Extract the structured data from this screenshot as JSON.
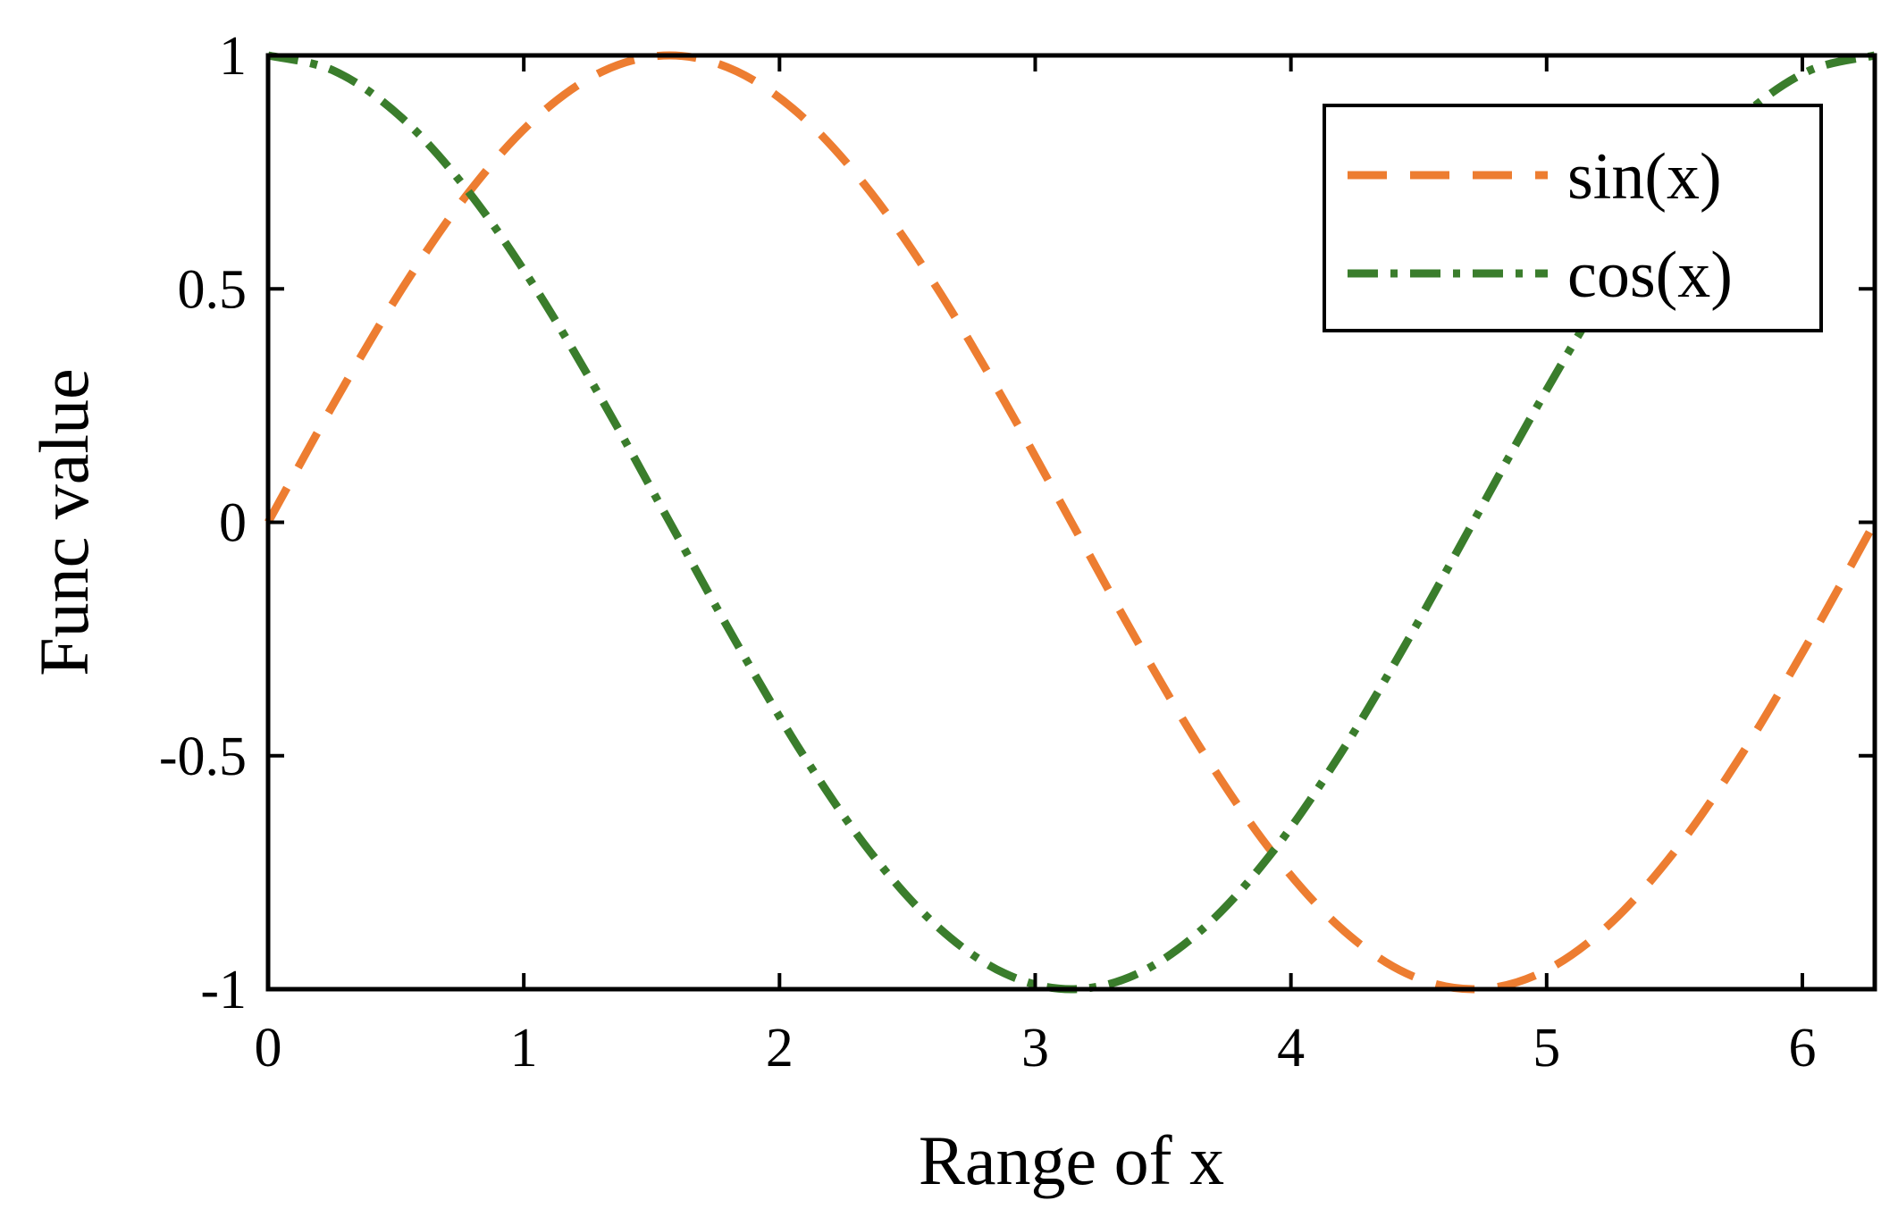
{
  "chart_data": {
    "type": "line",
    "title": "",
    "xlabel": "Range of x",
    "ylabel": "Func value",
    "xlim": [
      0,
      6.2832
    ],
    "ylim": [
      -1,
      1
    ],
    "xticks": [
      0,
      1,
      2,
      3,
      4,
      5,
      6
    ],
    "xtick_labels": [
      "0",
      "1",
      "2",
      "3",
      "4",
      "5",
      "6"
    ],
    "yticks": [
      -1,
      -0.5,
      0,
      0.5,
      1
    ],
    "ytick_labels": [
      "-1",
      "-0.5",
      "0",
      "0.5",
      "1"
    ],
    "grid": false,
    "legend": {
      "position": "top-right",
      "boxed": true
    },
    "series": [
      {
        "name": "sin(x)",
        "color": "#ED7D31",
        "line_style": "dashed",
        "x": [
          0,
          0.2618,
          0.5236,
          0.7854,
          1.0472,
          1.309,
          1.5708,
          1.8326,
          2.0944,
          2.3562,
          2.618,
          2.8798,
          3.1416,
          3.4034,
          3.6652,
          3.927,
          4.1888,
          4.4506,
          4.7124,
          4.9742,
          5.236,
          5.4978,
          5.7596,
          6.0214,
          6.2832
        ],
        "y": [
          0,
          0.259,
          0.5,
          0.707,
          0.866,
          0.966,
          1,
          0.966,
          0.866,
          0.707,
          0.5,
          0.259,
          0,
          -0.259,
          -0.5,
          -0.707,
          -0.866,
          -0.966,
          -1,
          -0.966,
          -0.866,
          -0.707,
          -0.5,
          -0.259,
          0
        ]
      },
      {
        "name": "cos(x)",
        "color": "#3A7D2C",
        "line_style": "dash-dot",
        "x": [
          0,
          0.2618,
          0.5236,
          0.7854,
          1.0472,
          1.309,
          1.5708,
          1.8326,
          2.0944,
          2.3562,
          2.618,
          2.8798,
          3.1416,
          3.4034,
          3.6652,
          3.927,
          4.1888,
          4.4506,
          4.7124,
          4.9742,
          5.236,
          5.4978,
          5.7596,
          6.0214,
          6.2832
        ],
        "y": [
          1,
          0.966,
          0.866,
          0.707,
          0.5,
          0.259,
          0,
          -0.259,
          -0.5,
          -0.707,
          -0.866,
          -0.966,
          -1,
          -0.966,
          -0.866,
          -0.707,
          -0.5,
          -0.259,
          0,
          0.259,
          0.5,
          0.707,
          0.866,
          0.966,
          1
        ]
      }
    ]
  }
}
